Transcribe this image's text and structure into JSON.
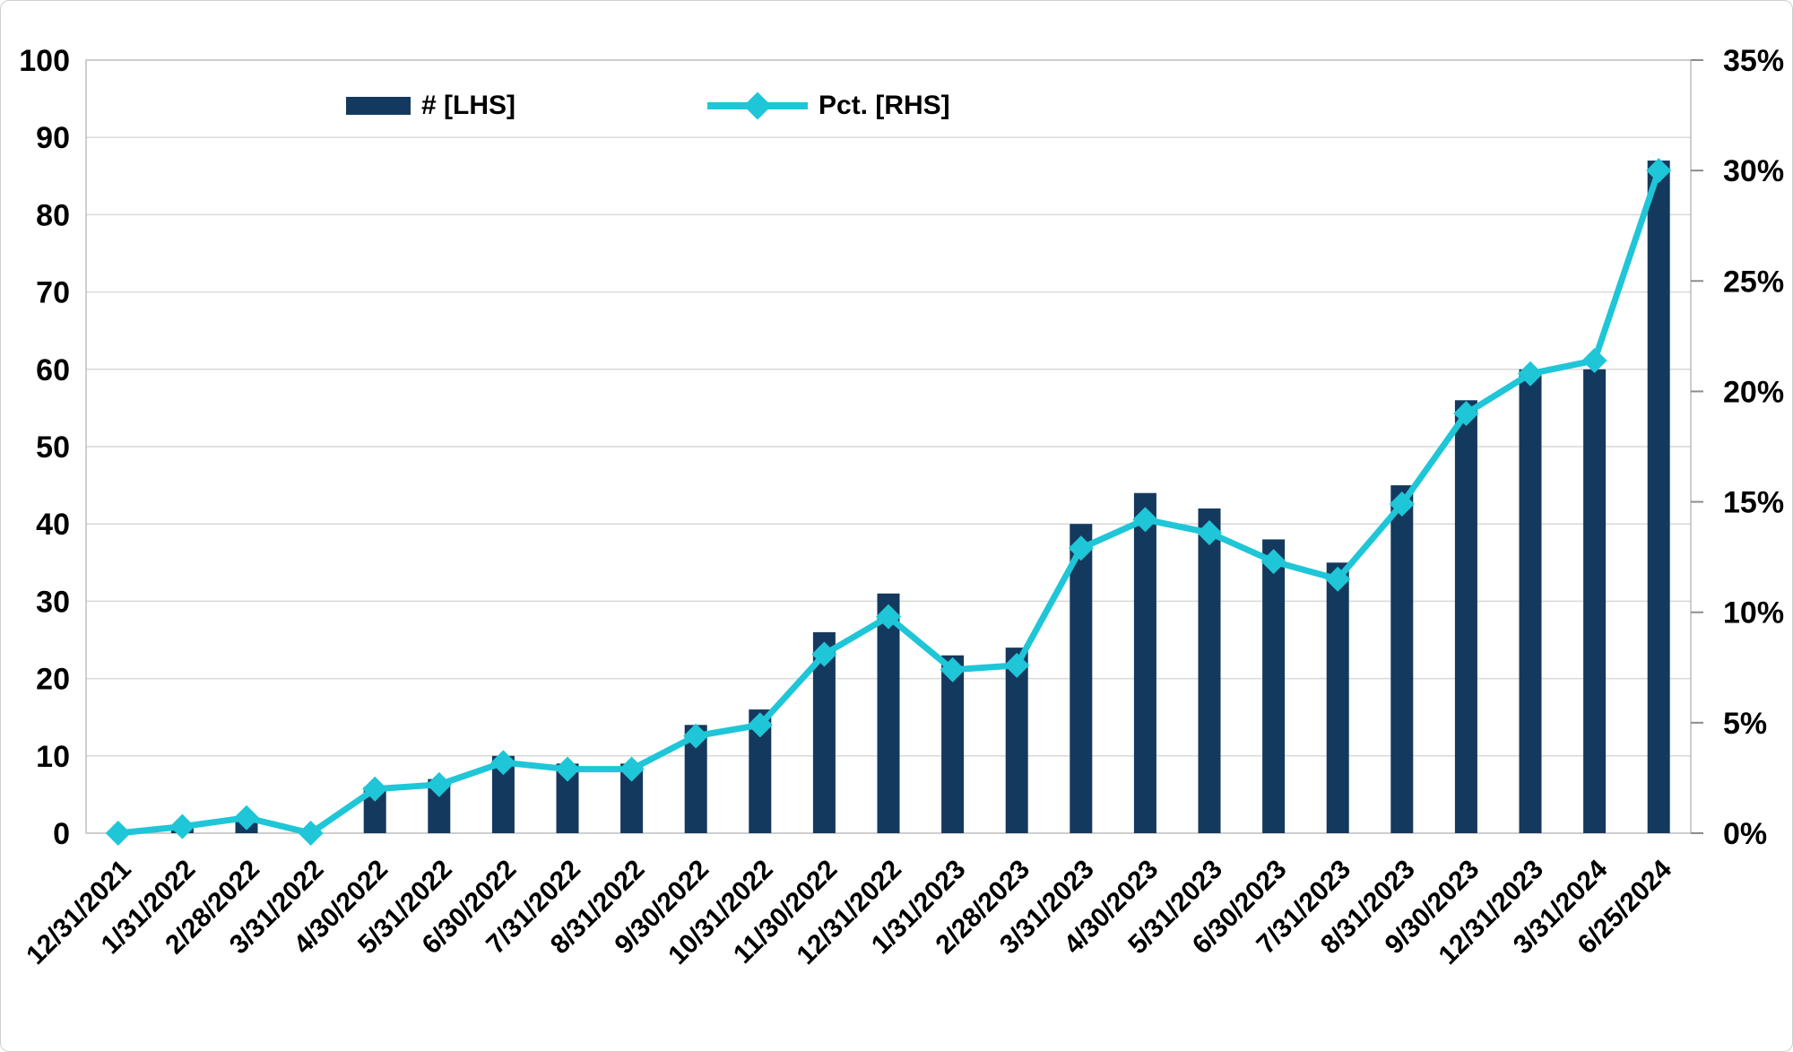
{
  "legend": {
    "bars_label": "# [LHS]",
    "line_label": "Pct. [RHS]"
  },
  "chart_data": {
    "type": "bar",
    "title": "",
    "grid": "horizontal",
    "legend_position": "top",
    "categories": [
      "12/31/2021",
      "1/31/2022",
      "2/28/2022",
      "3/31/2022",
      "4/30/2022",
      "5/31/2022",
      "6/30/2022",
      "7/31/2022",
      "8/31/2022",
      "9/30/2022",
      "10/31/2022",
      "11/30/2022",
      "12/31/2022",
      "1/31/2023",
      "2/28/2023",
      "3/31/2023",
      "4/30/2023",
      "5/31/2023",
      "6/30/2023",
      "7/31/2023",
      "8/31/2023",
      "9/30/2023",
      "12/31/2023",
      "3/31/2024",
      "6/25/2024"
    ],
    "series": [
      {
        "name": "# [LHS]",
        "type": "bar",
        "axis": "left",
        "values": [
          0,
          1,
          2,
          0,
          6,
          7,
          10,
          9,
          9,
          14,
          16,
          26,
          31,
          23,
          24,
          40,
          44,
          42,
          38,
          35,
          45,
          56,
          60,
          60,
          87
        ]
      },
      {
        "name": "Pct. [RHS]",
        "type": "line",
        "axis": "right",
        "marker": "diamond",
        "values_pct": [
          0.0,
          0.3,
          0.7,
          0.0,
          2.0,
          2.2,
          3.2,
          2.9,
          2.9,
          4.4,
          4.9,
          8.1,
          9.8,
          7.4,
          7.6,
          12.9,
          14.2,
          13.6,
          12.3,
          11.5,
          14.9,
          19.0,
          20.8,
          21.4,
          30.0
        ]
      }
    ],
    "left_axis": {
      "min": 0,
      "max": 100,
      "step": 10,
      "tick_labels": [
        "0",
        "10",
        "20",
        "30",
        "40",
        "50",
        "60",
        "70",
        "80",
        "90",
        "100"
      ]
    },
    "right_axis": {
      "min_pct": 0,
      "max_pct": 35,
      "step_pct": 5,
      "tick_labels": [
        "0%",
        "5%",
        "10%",
        "15%",
        "20%",
        "25%",
        "30%",
        "35%"
      ]
    },
    "colors": {
      "bar": "#14395E",
      "line": "#1EC6D7",
      "marker": "#1EC6D7",
      "gridline": "#D9D9D9",
      "axis_border": "#BDBDBD",
      "tick": "#8C8C8C",
      "text": "#000000",
      "background": "#FFFFFF"
    }
  }
}
